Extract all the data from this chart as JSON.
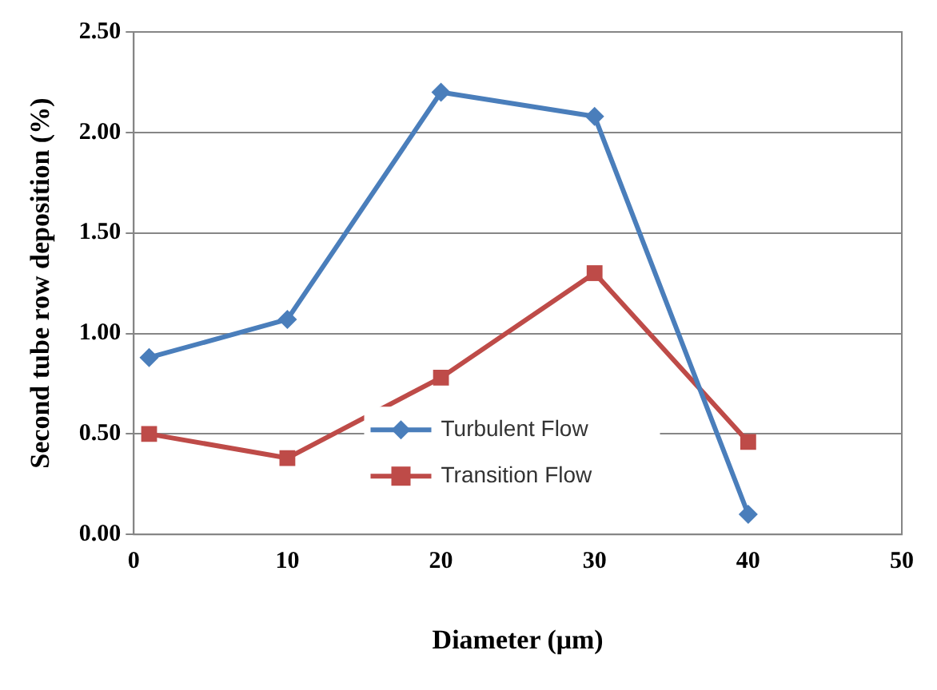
{
  "chart_data": {
    "type": "line",
    "xlabel": "Diameter (μm)",
    "ylabel": "Second tube row deposition (%)",
    "xlim": [
      0,
      50
    ],
    "xticks": [
      0,
      10,
      20,
      30,
      40,
      50
    ],
    "ylim": [
      0,
      2.5
    ],
    "yticks": [
      {
        "value": 0,
        "label": "0.00"
      },
      {
        "value": 0.5,
        "label": "0.50"
      },
      {
        "value": 1,
        "label": "1.00"
      },
      {
        "value": 1.5,
        "label": "1.50"
      },
      {
        "value": 2,
        "label": "2.00"
      },
      {
        "value": 2.5,
        "label": "2.50"
      }
    ],
    "grid": "y",
    "legend": "bottom",
    "line_style": "solid",
    "series": [
      {
        "name": "Turbulent Flow",
        "color": "#4a7ebb",
        "marker": "diamond",
        "x": [
          1,
          10,
          20,
          30,
          40
        ],
        "values": [
          0.88,
          1.07,
          2.2,
          2.08,
          0.1
        ]
      },
      {
        "name": "Transition Flow",
        "color": "#be4b48",
        "marker": "square",
        "x": [
          1,
          10,
          20,
          30,
          40
        ],
        "values": [
          0.5,
          0.38,
          0.78,
          1.3,
          0.46
        ]
      }
    ]
  }
}
